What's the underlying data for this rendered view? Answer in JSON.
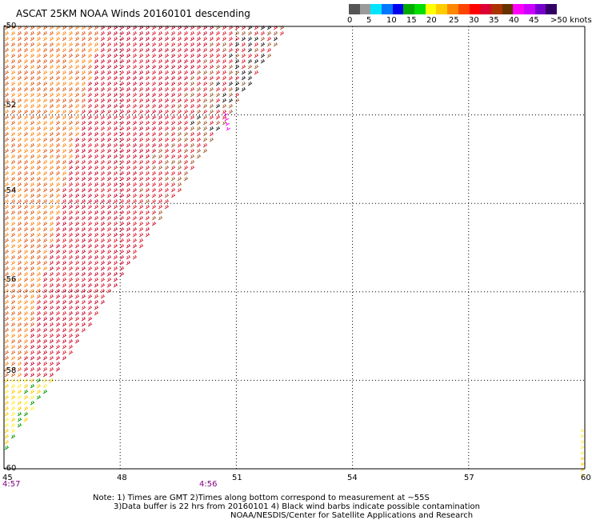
{
  "title": "ASCAT 25KM NOAA Winds 20160101 descending",
  "legend": {
    "labels": [
      "0",
      "5",
      "10",
      "15",
      "20",
      "25",
      "30",
      "35",
      "40",
      "45",
      ">50 knots"
    ],
    "colors": [
      "#555555",
      "#9a9a9a",
      "#00e5ff",
      "#0077ff",
      "#0000ee",
      "#00aa00",
      "#00dd00",
      "#ffff00",
      "#ffcc00",
      "#ff8800",
      "#ff4400",
      "#ff0000",
      "#dd0033",
      "#aa3300",
      "#663300",
      "#ff00ff",
      "#cc00ff",
      "#7700cc",
      "#330066"
    ]
  },
  "lat_labels": [
    "-50",
    "-52",
    "-54",
    "-56",
    "-58",
    "-60"
  ],
  "lon_labels": [
    "45",
    "48",
    "51",
    "54",
    "57",
    "60"
  ],
  "times": [
    "4:57",
    "4:56"
  ],
  "notes": [
    "Note: 1) Times are GMT 2)Times along bottom correspond to measurement at ~55S",
    "3)Data buffer is 22 hrs from 20160101 4) Black wind barbs indicate possible contamination",
    "NOAA/NESDIS/Center for Satellite Applications and Research"
  ],
  "map_data": {
    "lat_range": [
      -60,
      -50
    ],
    "lon_range": [
      45,
      60
    ],
    "grid_lats": [
      -52,
      -54,
      -56,
      -58
    ],
    "grid_lons": [
      48,
      51,
      54,
      57
    ],
    "wind_barb_palette": [
      "#ff8c1a",
      "#e06020",
      "#dd2233",
      "#cc1133",
      "#a06030",
      "#ffcc00",
      "#ffee33",
      "#009900",
      "#222222",
      "#ff00ff"
    ]
  }
}
